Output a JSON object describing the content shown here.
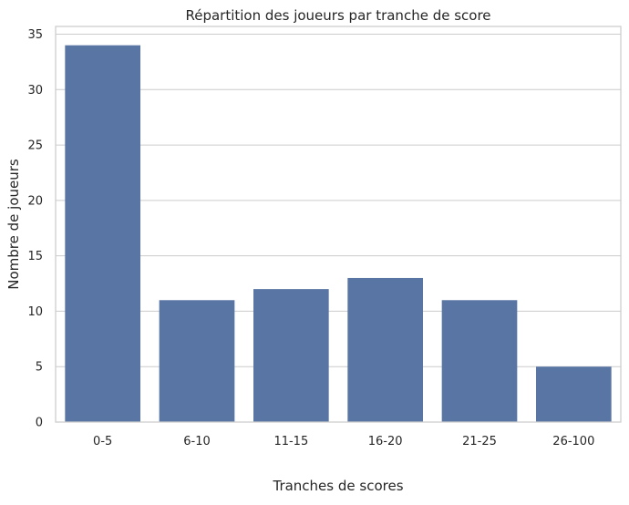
{
  "chart_data": {
    "type": "bar",
    "title": "Répartition des joueurs par tranche de score",
    "xlabel": "Tranches de scores",
    "ylabel": "Nombre de joueurs",
    "categories": [
      "0-5",
      "6-10",
      "11-15",
      "16-20",
      "21-25",
      "26-100"
    ],
    "values": [
      34,
      11,
      12,
      13,
      11,
      5
    ],
    "ylim": [
      0,
      35.7
    ],
    "yticks": [
      "0",
      "5",
      "10",
      "15",
      "20",
      "25",
      "30",
      "35"
    ],
    "grid": "horizontal",
    "bar_color": "#5975a4",
    "grid_color": "#cccccc",
    "axes_edge_color": "#cccccc"
  }
}
